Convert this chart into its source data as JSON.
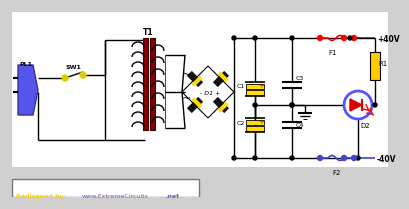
{
  "bg_color": "#d0d0d0",
  "white": "#ffffff",
  "black": "#000000",
  "red": "#ff0000",
  "blue_wire": "#4444cc",
  "yellow": "#ffdd00",
  "dark_red": "#880000",
  "plug_blue": "#5555ee",
  "led_circle": "#5555ff",
  "led_red": "#dd0000",
  "resistor_yellow": "#ffcc00",
  "gold": "#ddcc00",
  "label_yellow": "#ffcc00",
  "label_purple": "#8855bb",
  "voltage_pos": "+40V",
  "voltage_neg": "-40V",
  "credit": "Redisgned by: www.ExtremeCircuits.net"
}
